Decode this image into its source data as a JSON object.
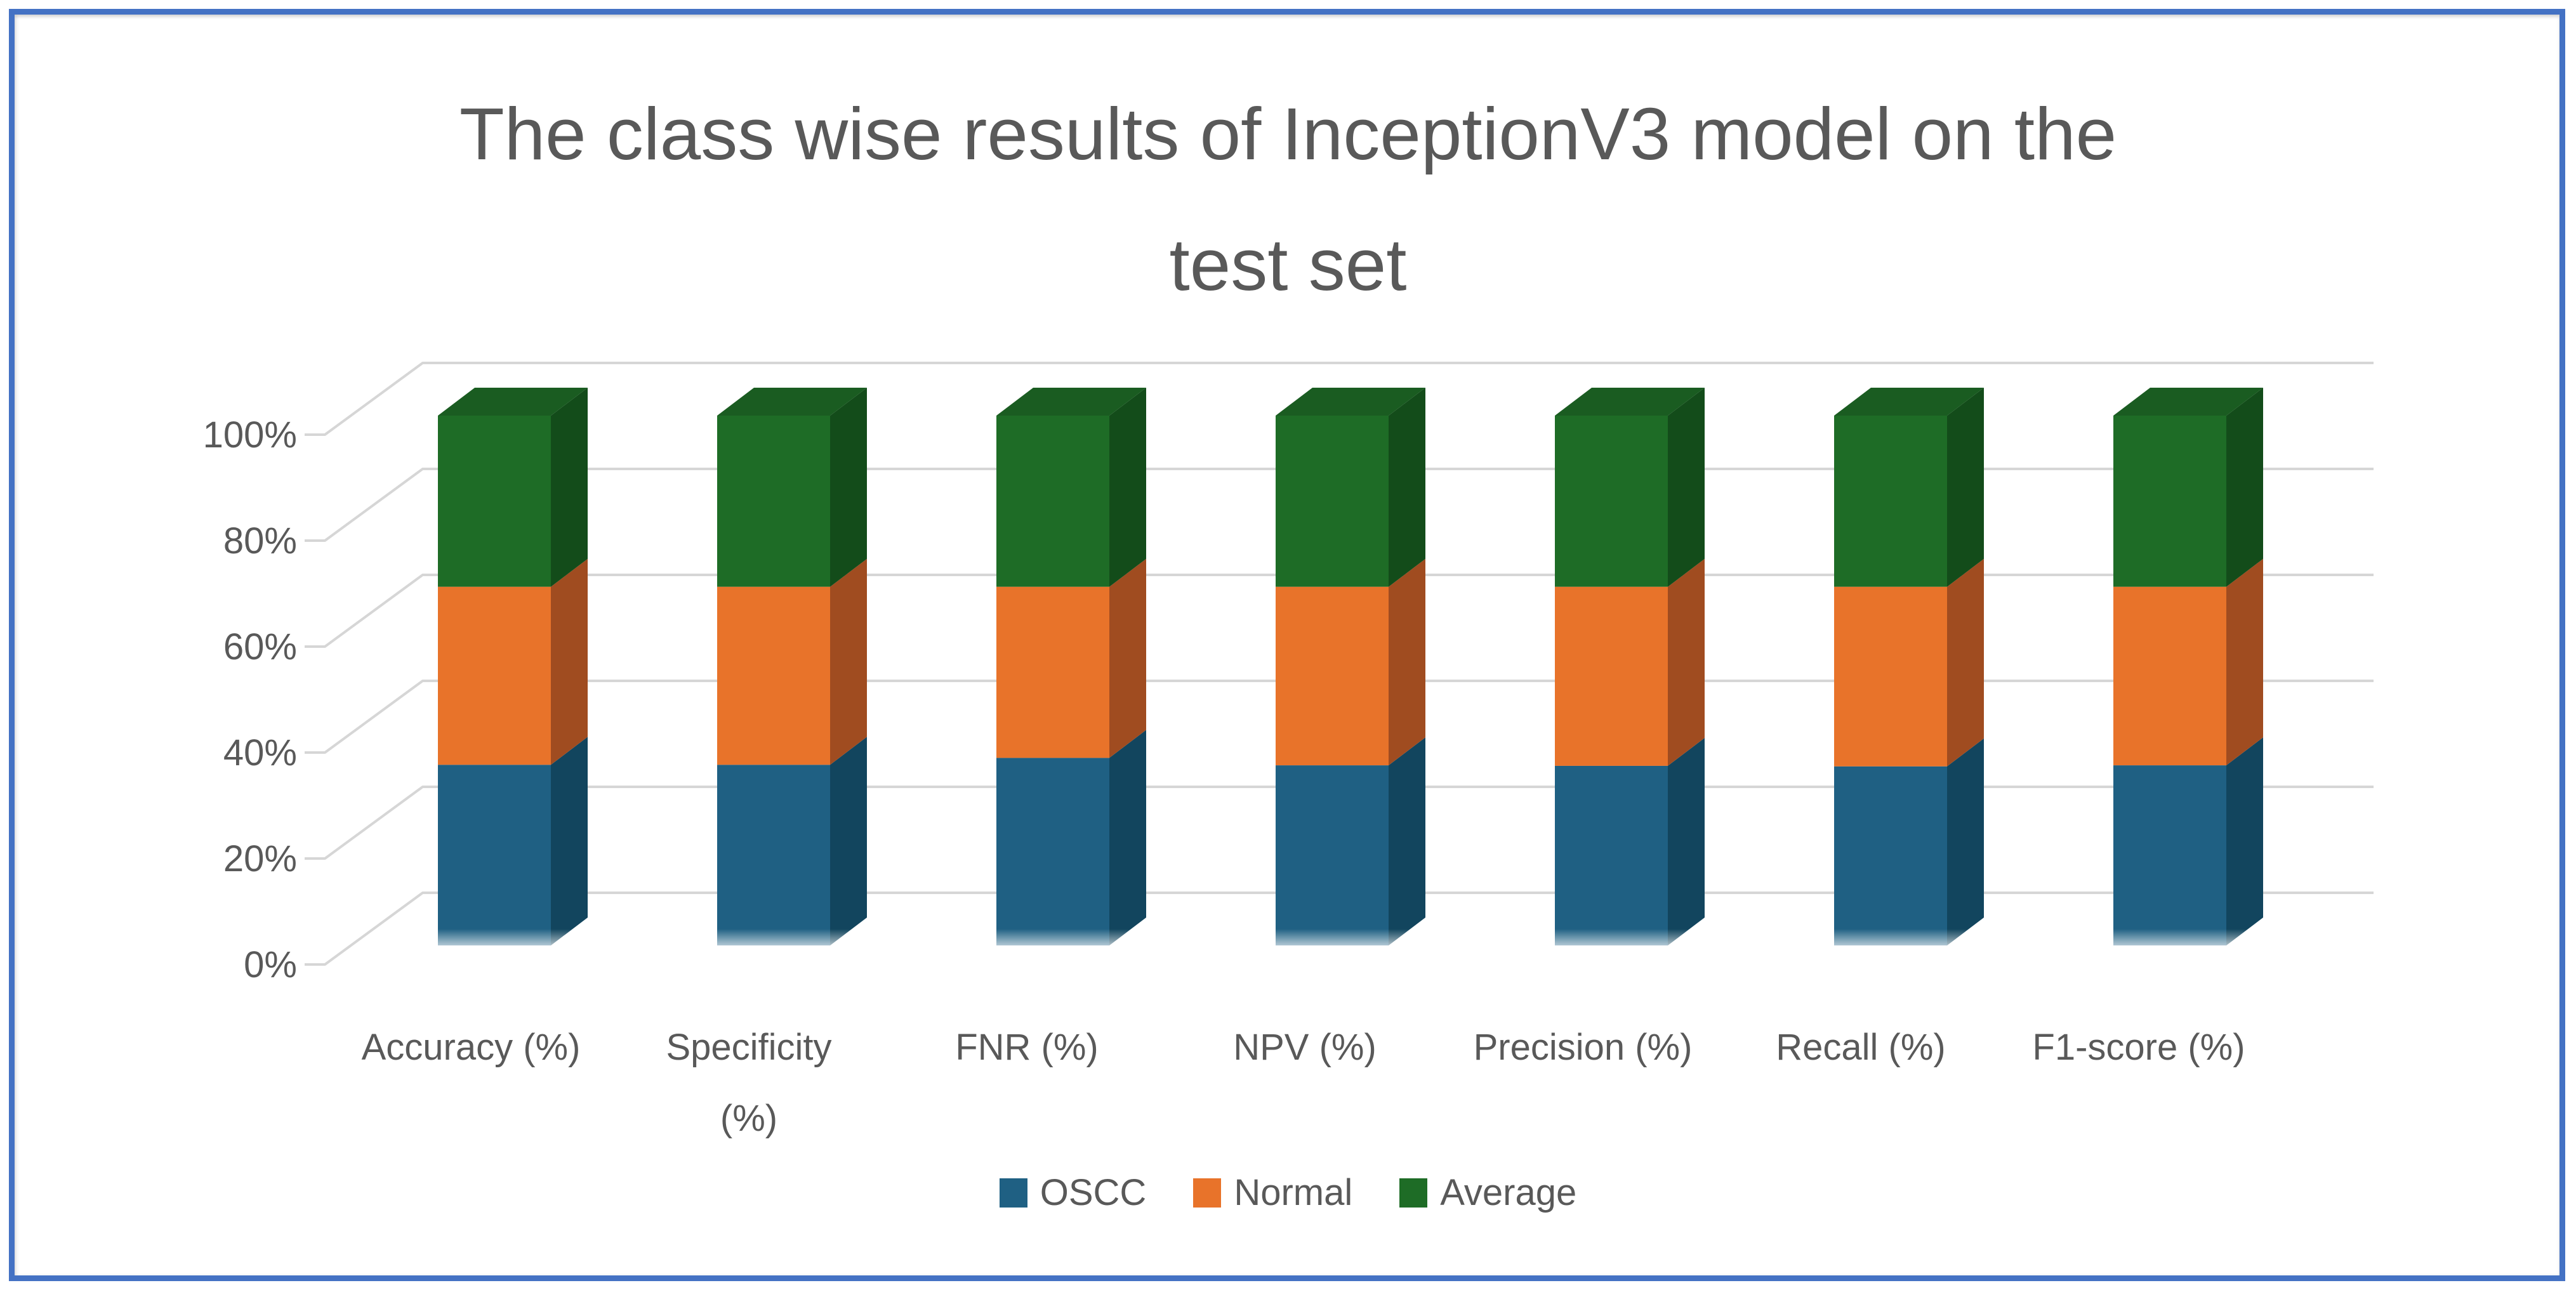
{
  "frame": {
    "border_color": "#4472C4",
    "background": "#FFFFFF"
  },
  "chart_data": {
    "type": "bar",
    "subtype": "3d-100-percent-stacked-column",
    "title": "The class wise results of InceptionV3 model on the test set",
    "title_lines": [
      "The class wise results of InceptionV3 model on the",
      "test set"
    ],
    "title_color": "#595959",
    "text_color": "#595959",
    "gridline_color": "#D6D6D6",
    "grid": true,
    "legend_position": "bottom",
    "categories": [
      "Accuracy (%)",
      "Specificity (%)",
      "FNR (%)",
      "NPV (%)",
      "Precision (%)",
      "Recall (%)",
      "F1-score (%)"
    ],
    "category_label_lines": [
      [
        "Accuracy (%)"
      ],
      [
        "Specificity",
        "(%)"
      ],
      [
        "FNR (%)"
      ],
      [
        "NPV (%)"
      ],
      [
        "Precision (%)"
      ],
      [
        "Recall (%)"
      ],
      [
        "F1-score (%)"
      ]
    ],
    "y_axis": {
      "min": 0,
      "max": 100,
      "tick_step": 20,
      "tick_labels": [
        "0%",
        "20%",
        "40%",
        "60%",
        "80%",
        "100%"
      ]
    },
    "series": [
      {
        "name": "OSCC",
        "color": "#1F6083",
        "side_color": "#12455E",
        "share_pct": [
          34.1,
          34.1,
          35.4,
          34.0,
          33.9,
          33.8,
          34.0
        ]
      },
      {
        "name": "Normal",
        "color": "#E8732A",
        "side_color": "#A04C20",
        "share_pct": [
          33.6,
          33.6,
          32.3,
          33.7,
          33.8,
          33.9,
          33.7
        ]
      },
      {
        "name": "Average",
        "color": "#1E6C26",
        "side_color": "#134C1A",
        "top_color": "#1A5C21",
        "share_pct": [
          32.3,
          32.3,
          32.3,
          32.3,
          32.3,
          32.3,
          32.3
        ]
      }
    ],
    "note": "Shares are the rendered proportions of each 100%-stacked column, estimated from the figure."
  }
}
